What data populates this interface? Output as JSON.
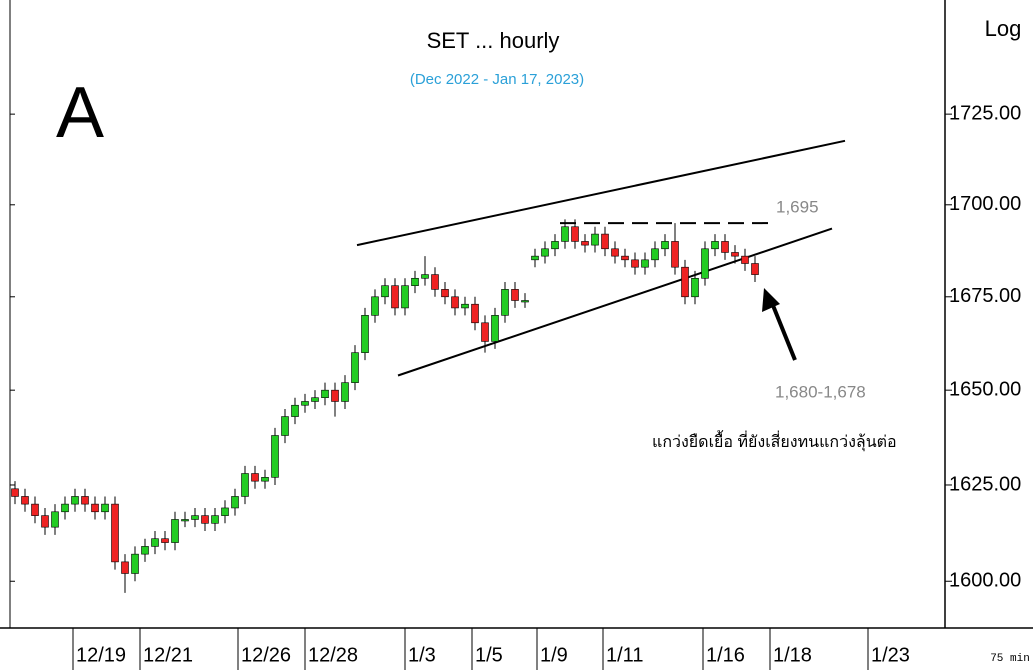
{
  "chart_data": {
    "type": "candlestick",
    "title": "SET ... hourly",
    "subtitle": "(Dec 2022 - Jan 17, 2023)",
    "panel_label": "A",
    "scale_label": "Log",
    "interval_label": "75 min",
    "log_scale": true,
    "up_color": "#22cc22",
    "down_color": "#ee2222",
    "open": [
      1624,
      1622,
      1620,
      1617,
      1614,
      1618,
      1620,
      1622,
      1620,
      1618,
      1620,
      1605,
      1602,
      1607,
      1609,
      1611,
      1610,
      1616,
      1616,
      1617,
      1615,
      1617,
      1619,
      1622,
      1628,
      1626,
      1627,
      1638,
      1643,
      1646,
      1647,
      1648,
      1650,
      1647,
      1652,
      1660,
      1670,
      1675,
      1678,
      1672,
      1678,
      1680,
      1681,
      1677,
      1675,
      1672,
      1673,
      1668,
      1663,
      1670,
      1677,
      1674,
      1685,
      1686,
      1688,
      1690,
      1694,
      1690,
      1689,
      1692,
      1688,
      1686,
      1685,
      1683,
      1685,
      1688,
      1690,
      1683,
      1675,
      1680,
      1688,
      1690,
      1687,
      1686,
      1684
    ],
    "high": [
      1626,
      1624,
      1622,
      1619,
      1620,
      1622,
      1624,
      1624,
      1622,
      1622,
      1622,
      1607,
      1609,
      1611,
      1613,
      1613,
      1618,
      1618,
      1619,
      1619,
      1619,
      1621,
      1624,
      1630,
      1630,
      1629,
      1640,
      1645,
      1648,
      1649,
      1650,
      1652,
      1652,
      1654,
      1662,
      1672,
      1677,
      1680,
      1680,
      1680,
      1682,
      1686,
      1683,
      1679,
      1677,
      1675,
      1675,
      1670,
      1672,
      1679,
      1679,
      1676,
      1688,
      1690,
      1692,
      1696,
      1696,
      1692,
      1694,
      1694,
      1690,
      1688,
      1687,
      1687,
      1690,
      1692,
      1695,
      1685,
      1682,
      1690,
      1692,
      1692,
      1689,
      1688,
      1686
    ],
    "low": [
      1620,
      1618,
      1615,
      1612,
      1612,
      1616,
      1618,
      1618,
      1616,
      1616,
      1603,
      1597,
      1600,
      1605,
      1607,
      1608,
      1608,
      1614,
      1614,
      1613,
      1613,
      1615,
      1617,
      1620,
      1624,
      1624,
      1625,
      1636,
      1641,
      1644,
      1645,
      1646,
      1643,
      1645,
      1650,
      1658,
      1668,
      1673,
      1670,
      1670,
      1676,
      1678,
      1675,
      1673,
      1670,
      1670,
      1666,
      1660,
      1661,
      1668,
      1672,
      1672,
      1683,
      1684,
      1686,
      1688,
      1688,
      1687,
      1687,
      1686,
      1684,
      1683,
      1681,
      1681,
      1683,
      1686,
      1681,
      1673,
      1673,
      1678,
      1686,
      1685,
      1684,
      1682,
      1679
    ],
    "close": [
      1622,
      1620,
      1617,
      1614,
      1618,
      1620,
      1622,
      1620,
      1618,
      1620,
      1605,
      1602,
      1607,
      1609,
      1611,
      1610,
      1616,
      1616,
      1617,
      1615,
      1617,
      1619,
      1622,
      1628,
      1626,
      1627,
      1638,
      1643,
      1646,
      1647,
      1648,
      1650,
      1647,
      1652,
      1660,
      1670,
      1675,
      1678,
      1672,
      1678,
      1680,
      1681,
      1677,
      1675,
      1672,
      1673,
      1668,
      1663,
      1670,
      1677,
      1674,
      1674,
      1686,
      1688,
      1690,
      1694,
      1690,
      1689,
      1692,
      1688,
      1686,
      1685,
      1683,
      1685,
      1688,
      1690,
      1683,
      1675,
      1680,
      1688,
      1690,
      1687,
      1686,
      1684,
      1681
    ],
    "trend_lines": [
      {
        "x": [
          34.2,
          83
        ],
        "y": [
          1689,
          1717.6
        ],
        "dashed": false
      },
      {
        "x": [
          38.3,
          81.7
        ],
        "y": [
          1653.9,
          1693.5
        ],
        "dashed": false
      },
      {
        "x": [
          54.5,
          75.7
        ],
        "y": [
          1695,
          1695
        ],
        "dashed": true
      }
    ],
    "annotations": [
      "1,695",
      "1,680-1,678",
      "แกว่งยืดเยื้อ ที่ยังเสี่ยงทนแกว่งลุ้นต่อ"
    ],
    "xlim": [
      -0.5,
      93
    ],
    "xticks": [
      {
        "value": 5.8,
        "label": "12/19"
      },
      {
        "value": 12.5,
        "label": "12/21"
      },
      {
        "value": 22.3,
        "label": "12/26"
      },
      {
        "value": 29,
        "label": "12/28"
      },
      {
        "value": 39,
        "label": "1/3"
      },
      {
        "value": 45.7,
        "label": "1/5"
      },
      {
        "value": 52.2,
        "label": "1/9"
      },
      {
        "value": 58.8,
        "label": "1/11"
      },
      {
        "value": 68.8,
        "label": "1/16"
      },
      {
        "value": 75.5,
        "label": "1/18"
      },
      {
        "value": 85.3,
        "label": "1/23"
      }
    ],
    "ylim": [
      1588,
      1757
    ],
    "yticks": [
      {
        "value": 1600,
        "label": "1600.00"
      },
      {
        "value": 1625,
        "label": "1625.00"
      },
      {
        "value": 1650,
        "label": "1650.00"
      },
      {
        "value": 1675,
        "label": "1675.00"
      },
      {
        "value": 1700,
        "label": "1700.00"
      },
      {
        "value": 1725,
        "label": "1725.00"
      }
    ]
  }
}
